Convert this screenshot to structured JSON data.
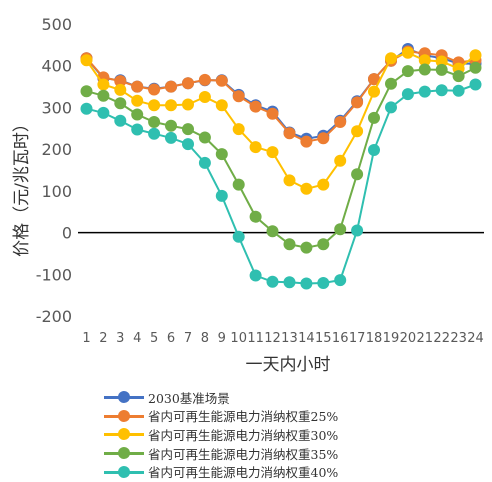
{
  "chart_data": {
    "type": "line",
    "title": "",
    "xlabel": "一天内小时",
    "ylabel": "价格（元/兆瓦时）",
    "ylim": [
      -200,
      500
    ],
    "yticks": [
      -200,
      -100,
      0,
      100,
      200,
      300,
      400,
      500
    ],
    "grid": false,
    "legend_position": "bottom",
    "categories": [
      "1",
      "2",
      "3",
      "4",
      "5",
      "6",
      "7",
      "8",
      "9",
      "10",
      "11",
      "12",
      "13",
      "14",
      "15",
      "16",
      "17",
      "18",
      "19",
      "20",
      "21",
      "22",
      "23",
      "24"
    ],
    "series": [
      {
        "name": "2030基准场景",
        "color": "#4472C4",
        "values": [
          418,
          370,
          365,
          350,
          345,
          350,
          358,
          365,
          365,
          330,
          305,
          290,
          240,
          225,
          232,
          268,
          315,
          368,
          412,
          440,
          425,
          418,
          405,
          405
        ]
      },
      {
        "name": "省内可再生能源电力消纳权重25%",
        "color": "#ED7D31",
        "values": [
          418,
          372,
          363,
          350,
          343,
          350,
          358,
          366,
          364,
          327,
          302,
          285,
          238,
          218,
          226,
          265,
          312,
          368,
          412,
          434,
          430,
          425,
          408,
          413
        ]
      },
      {
        "name": "省内可再生能源电力消纳权重30%",
        "color": "#FFC000",
        "values": [
          413,
          355,
          342,
          316,
          305,
          305,
          307,
          325,
          305,
          248,
          205,
          193,
          125,
          105,
          115,
          172,
          243,
          338,
          418,
          431,
          413,
          410,
          393,
          425
        ]
      },
      {
        "name": "省内可再生能源电力消纳权重35%",
        "color": "#70AD47",
        "values": [
          339,
          328,
          310,
          283,
          265,
          256,
          248,
          228,
          188,
          115,
          38,
          3,
          -28,
          -36,
          -28,
          8,
          140,
          275,
          357,
          387,
          391,
          390,
          375,
          395
        ]
      },
      {
        "name": "省内可再生能源电力消纳权重40%",
        "color": "#2FBFB0",
        "values": [
          297,
          287,
          268,
          247,
          237,
          227,
          212,
          167,
          88,
          -10,
          -103,
          -118,
          -119,
          -122,
          -121,
          -114,
          5,
          198,
          300,
          332,
          338,
          341,
          340,
          355
        ]
      }
    ]
  }
}
